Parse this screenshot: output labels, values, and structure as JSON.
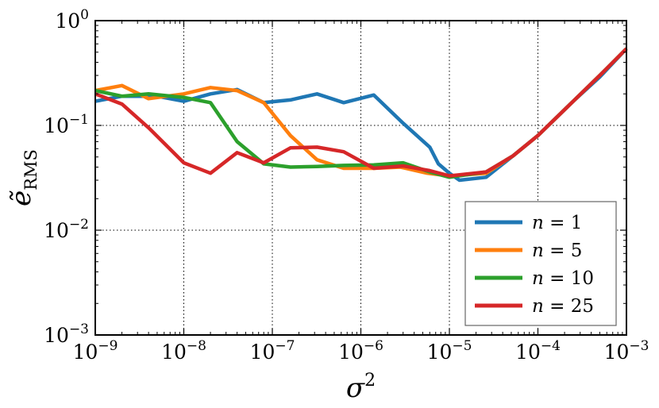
{
  "chart_data": {
    "type": "line",
    "x_scale": "log",
    "y_scale": "log",
    "xlim": [
      1e-09,
      0.001
    ],
    "ylim": [
      0.001,
      1
    ],
    "grid": true,
    "legend_placement": "bottom-right",
    "xlabel": {
      "base": "σ",
      "sup": "2"
    },
    "ylabel": {
      "base": "ẽ",
      "sub": "RMS"
    },
    "x_ticks": [
      {
        "value": 1e-09,
        "base": "10",
        "exp": "−9"
      },
      {
        "value": 1e-08,
        "base": "10",
        "exp": "−8"
      },
      {
        "value": 1e-07,
        "base": "10",
        "exp": "−7"
      },
      {
        "value": 1e-06,
        "base": "10",
        "exp": "−6"
      },
      {
        "value": 1e-05,
        "base": "10",
        "exp": "−5"
      },
      {
        "value": 0.0001,
        "base": "10",
        "exp": "−4"
      },
      {
        "value": 0.001,
        "base": "10",
        "exp": "−3"
      }
    ],
    "y_ticks": [
      {
        "value": 0.001,
        "base": "10",
        "exp": "−3"
      },
      {
        "value": 0.01,
        "base": "10",
        "exp": "−2"
      },
      {
        "value": 0.1,
        "base": "10",
        "exp": "−1"
      },
      {
        "value": 1,
        "base": "10",
        "exp": "0"
      }
    ],
    "series": [
      {
        "name": "n = 1",
        "color": "#1f77b4",
        "x": [
          1e-09,
          2e-09,
          5e-09,
          1e-08,
          2e-08,
          4e-08,
          8e-08,
          1.6e-07,
          3.2e-07,
          6.4e-07,
          1.4e-06,
          3e-06,
          6e-06,
          7.5e-06,
          1e-05,
          1.3e-05,
          2.6e-05,
          5.2e-05,
          0.0001,
          0.00025,
          0.0005,
          0.001
        ],
        "y": [
          0.17,
          0.19,
          0.19,
          0.17,
          0.2,
          0.22,
          0.165,
          0.175,
          0.2,
          0.165,
          0.195,
          0.105,
          0.062,
          0.043,
          0.035,
          0.03,
          0.032,
          0.051,
          0.08,
          0.17,
          0.29,
          0.54
        ]
      },
      {
        "name": "n = 5",
        "color": "#ff7f0e",
        "x": [
          1e-09,
          2e-09,
          4e-09,
          1e-08,
          2e-08,
          4e-08,
          8e-08,
          1.6e-07,
          3.2e-07,
          6.4e-07,
          1.4e-06,
          2.8e-06,
          5.6e-06,
          1e-05,
          2.6e-05,
          5.2e-05,
          0.0001,
          0.00025,
          0.0005,
          0.001
        ],
        "y": [
          0.215,
          0.24,
          0.18,
          0.2,
          0.23,
          0.215,
          0.165,
          0.08,
          0.047,
          0.039,
          0.039,
          0.04,
          0.035,
          0.033,
          0.035,
          0.051,
          0.08,
          0.17,
          0.3,
          0.54
        ]
      },
      {
        "name": "n = 10",
        "color": "#2ca02c",
        "x": [
          1e-09,
          2e-09,
          4e-09,
          1e-08,
          2e-08,
          4e-08,
          8e-08,
          1.6e-07,
          3.2e-07,
          6.4e-07,
          1.4e-06,
          3e-06,
          6e-06,
          1e-05,
          2.6e-05,
          5.2e-05,
          0.0001,
          0.00025,
          0.0005,
          0.001
        ],
        "y": [
          0.215,
          0.19,
          0.2,
          0.185,
          0.165,
          0.07,
          0.043,
          0.04,
          0.0405,
          0.0415,
          0.042,
          0.044,
          0.036,
          0.032,
          0.036,
          0.051,
          0.08,
          0.17,
          0.3,
          0.54
        ]
      },
      {
        "name": "n = 25",
        "color": "#d62728",
        "x": [
          1e-09,
          2e-09,
          4e-09,
          1e-08,
          2e-08,
          4e-08,
          8e-08,
          1.6e-07,
          3.2e-07,
          6.4e-07,
          1.4e-06,
          3e-06,
          6e-06,
          1e-05,
          2.6e-05,
          5.2e-05,
          0.0001,
          0.00025,
          0.0005,
          0.001
        ],
        "y": [
          0.2,
          0.16,
          0.095,
          0.044,
          0.035,
          0.055,
          0.044,
          0.061,
          0.062,
          0.056,
          0.039,
          0.041,
          0.037,
          0.033,
          0.036,
          0.051,
          0.08,
          0.17,
          0.3,
          0.54
        ]
      }
    ]
  }
}
